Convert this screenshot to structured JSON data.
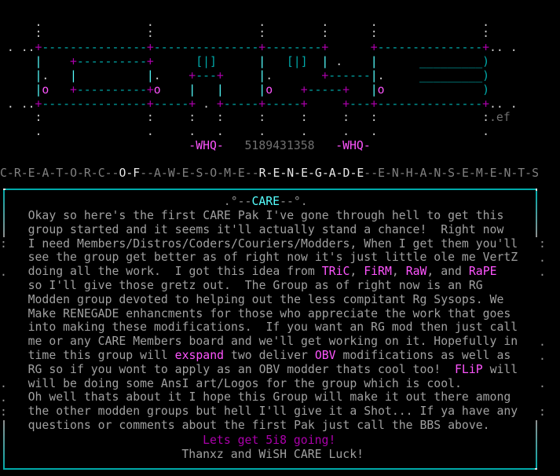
{
  "colors": {
    "text": "#a0a0a0",
    "dim": "#808080",
    "bright": "#e8e8e8",
    "magenta": "#aa00aa",
    "bright_magenta": "#ff55ff",
    "cyan": "#00aaaa",
    "bright_cyan": "#55ffff"
  },
  "logo": {
    "signature": ".ef",
    "whq_left": "-WHQ-",
    "phone": "5189431358",
    "whq_right": "-WHQ-"
  },
  "tagline": {
    "segments": [
      {
        "text": "C-R-E-A-T-O-R-C--",
        "bright": false
      },
      {
        "text": "O-F",
        "bright": true
      },
      {
        "text": "--A-W-E-S-O-M-E--",
        "bright": false
      },
      {
        "text": "R-E-N-E-G-A-D-E",
        "bright": true
      },
      {
        "text": "--E-N-H-A-N-S-E-M-E-N-T-S",
        "bright": false
      }
    ]
  },
  "box": {
    "title_left": ".°--",
    "title": "CARE",
    "title_right": "--°.",
    "lines": [
      [
        {
          "text": "Okay so here's the first CARE Pak I've gone through hell to get this"
        }
      ],
      [
        {
          "text": "group started and it seems it'll actually stand a chance!  Right now"
        }
      ],
      [
        {
          "text": "I need Members/Distros/Coders/Couriers/Modders, When I get them you'll"
        }
      ],
      [
        {
          "text": "see the group get better as of right now it's just little ole me VertZ"
        }
      ],
      [
        {
          "text": "doing all the work.  I got this idea from "
        },
        {
          "text": "TRiC",
          "hl": true
        },
        {
          "text": ", "
        },
        {
          "text": "FiRM",
          "hl": true
        },
        {
          "text": ", "
        },
        {
          "text": "RaW",
          "hl": true
        },
        {
          "text": ", and "
        },
        {
          "text": "RaPE",
          "hl": true
        }
      ],
      [
        {
          "text": "so I'll give those gretz out.  The Group as of right now is an RG"
        }
      ],
      [
        {
          "text": "Modden group devoted to helping out the less compitant Rg Sysops. We"
        }
      ],
      [
        {
          "text": "Make RENEGADE enhancments for those who appreciate the work that goes"
        }
      ],
      [
        {
          "text": "into making these modifications.  If you want an RG mod then just call"
        }
      ],
      [
        {
          "text": "me or any CARE Members board and we'll get working on it. Hopefully in"
        }
      ],
      [
        {
          "text": "time this group will "
        },
        {
          "text": "exspand",
          "hl": true
        },
        {
          "text": " two deliver "
        },
        {
          "text": "OBV",
          "hl": true
        },
        {
          "text": " modifications as well as"
        }
      ],
      [
        {
          "text": "RG so if you wont to apply as an OBV modder thats cool too!  "
        },
        {
          "text": "FLiP",
          "hl": true
        },
        {
          "text": " will"
        }
      ],
      [
        {
          "text": "will be doing some AnsI art/Logos for the group which is cool."
        }
      ],
      [
        {
          "text": "Oh well thats about it I hope this Group will make it out there among"
        }
      ],
      [
        {
          "text": "the other modden groups but hell I'll give it a Shot... If ya have any"
        }
      ],
      [
        {
          "text": "questions or comments about the first Pak just call the BBS above."
        }
      ]
    ],
    "closing_1": "Lets get 5i8 going!",
    "closing_2": "Thanxz and WiSH CARE Luck!"
  }
}
